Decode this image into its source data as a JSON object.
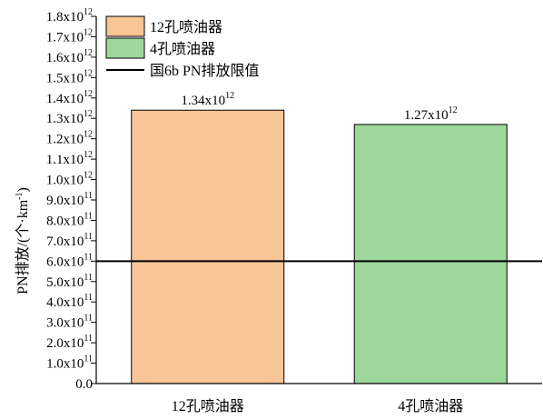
{
  "chart_data": {
    "type": "bar",
    "categories": [
      "12孔喷油器",
      "4孔喷油器"
    ],
    "values": [
      1340000000000.0,
      1270000000000.0
    ],
    "value_labels": [
      {
        "mantissa": "1.34x10",
        "exp": "12"
      },
      {
        "mantissa": "1.27x10",
        "exp": "12"
      }
    ],
    "bar_colors": [
      "#f8c596",
      "#9dd79b"
    ],
    "ylabel": "PN排放/(个·km",
    "ylabel_exp": "-1",
    "ylabel_close": ")",
    "ylim": [
      0,
      1800000000000.0
    ],
    "yticks": [
      {
        "value": 0,
        "mantissa": "0.0",
        "exp": ""
      },
      {
        "value": 100000000000.0,
        "mantissa": "1.0x10",
        "exp": "11"
      },
      {
        "value": 200000000000.0,
        "mantissa": "2.0x10",
        "exp": "11"
      },
      {
        "value": 300000000000.0,
        "mantissa": "3.0x10",
        "exp": "11"
      },
      {
        "value": 400000000000.0,
        "mantissa": "4.0x10",
        "exp": "11"
      },
      {
        "value": 500000000000.0,
        "mantissa": "5.0x10",
        "exp": "11"
      },
      {
        "value": 600000000000.0,
        "mantissa": "6.0x10",
        "exp": "11"
      },
      {
        "value": 700000000000.0,
        "mantissa": "7.0x10",
        "exp": "11"
      },
      {
        "value": 800000000000.0,
        "mantissa": "8.0x10",
        "exp": "11"
      },
      {
        "value": 900000000000.0,
        "mantissa": "9.0x10",
        "exp": "11"
      },
      {
        "value": 1000000000000.0,
        "mantissa": "1.0x10",
        "exp": "12"
      },
      {
        "value": 1100000000000.0,
        "mantissa": "1.1x10",
        "exp": "12"
      },
      {
        "value": 1200000000000.0,
        "mantissa": "1.2x10",
        "exp": "12"
      },
      {
        "value": 1300000000000.0,
        "mantissa": "1.3x10",
        "exp": "12"
      },
      {
        "value": 1400000000000.0,
        "mantissa": "1.4x10",
        "exp": "12"
      },
      {
        "value": 1500000000000.0,
        "mantissa": "1.5x10",
        "exp": "12"
      },
      {
        "value": 1600000000000.0,
        "mantissa": "1.6x10",
        "exp": "12"
      },
      {
        "value": 1700000000000.0,
        "mantissa": "1.7x10",
        "exp": "12"
      },
      {
        "value": 1800000000000.0,
        "mantissa": "1.8x10",
        "exp": "12"
      }
    ],
    "limit_line": {
      "value": 600000000000.0,
      "label": "国6b PN排放限值",
      "color": "#000000"
    },
    "legend": [
      {
        "label": "12孔喷油器",
        "color": "#f8c596",
        "kind": "bar"
      },
      {
        "label": "4孔喷油器",
        "color": "#9dd79b",
        "kind": "bar"
      },
      {
        "label": "国6b PN排放限值",
        "color": "#000000",
        "kind": "line"
      }
    ],
    "legend_position": "top-left",
    "grid": false
  }
}
